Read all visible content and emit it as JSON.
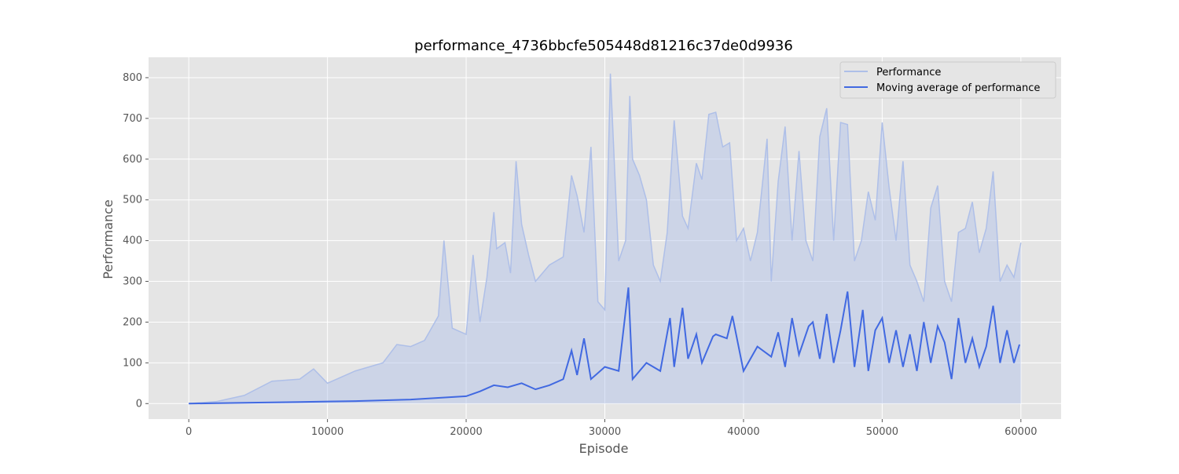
{
  "chart_data": {
    "type": "line",
    "title": "performance_4736bbcfe505448d81216c37de0d9936",
    "xlabel": "Episode",
    "ylabel": "Performance",
    "xlim": [
      -2900,
      62900
    ],
    "ylim": [
      -38,
      850
    ],
    "xticks": [
      0,
      10000,
      20000,
      30000,
      40000,
      50000,
      60000
    ],
    "yticks": [
      0,
      100,
      200,
      300,
      400,
      500,
      600,
      700,
      800
    ],
    "grid": true,
    "legend_position": "top-right",
    "colors": {
      "raw": "#aebfe8",
      "avg": "#4169e1",
      "plot_bg": "#e5e5e5",
      "grid": "#ffffff"
    },
    "series": [
      {
        "name": "Performance",
        "style": "light",
        "x": [
          0,
          2000,
          4000,
          6000,
          8000,
          9000,
          10000,
          12000,
          14000,
          15000,
          16000,
          17000,
          18000,
          18400,
          19000,
          20000,
          20500,
          21000,
          21500,
          22000,
          22200,
          22800,
          23200,
          23600,
          24000,
          24500,
          25000,
          26000,
          27000,
          27600,
          28000,
          28500,
          29000,
          29500,
          30000,
          30400,
          31000,
          31500,
          31800,
          32000,
          32500,
          33000,
          33500,
          34000,
          34500,
          35000,
          35600,
          36000,
          36600,
          37000,
          37500,
          38000,
          38500,
          39000,
          39500,
          40000,
          40500,
          41000,
          41700,
          42000,
          42500,
          43000,
          43500,
          44000,
          44500,
          45000,
          45500,
          46000,
          46500,
          47000,
          47500,
          48000,
          48500,
          49000,
          49500,
          50000,
          50500,
          51000,
          51500,
          52000,
          52500,
          53000,
          53500,
          54000,
          54500,
          55000,
          55500,
          56000,
          56500,
          57000,
          57500,
          58000,
          58500,
          59000,
          59500,
          60000
        ],
        "y": [
          0,
          5,
          20,
          55,
          60,
          85,
          50,
          80,
          100,
          145,
          140,
          155,
          215,
          400,
          185,
          170,
          365,
          200,
          310,
          470,
          380,
          395,
          320,
          595,
          440,
          365,
          300,
          340,
          360,
          560,
          510,
          420,
          630,
          250,
          230,
          810,
          350,
          400,
          755,
          600,
          560,
          500,
          340,
          300,
          420,
          695,
          460,
          430,
          590,
          550,
          710,
          715,
          630,
          640,
          400,
          430,
          350,
          420,
          650,
          300,
          545,
          680,
          400,
          620,
          400,
          350,
          655,
          725,
          400,
          690,
          685,
          350,
          400,
          520,
          450,
          690,
          530,
          400,
          595,
          340,
          300,
          250,
          480,
          535,
          300,
          250,
          420,
          430,
          495,
          370,
          430,
          570,
          300,
          340,
          310,
          395
        ]
      },
      {
        "name": "Moving average of performance",
        "style": "dark",
        "x": [
          0,
          2000,
          4000,
          6000,
          8000,
          10000,
          12000,
          14000,
          16000,
          18000,
          20000,
          21000,
          22000,
          23000,
          24000,
          25000,
          26000,
          27000,
          27600,
          28000,
          28500,
          29000,
          30000,
          31000,
          31700,
          32000,
          33000,
          34000,
          34700,
          35000,
          35600,
          36000,
          36600,
          37000,
          37800,
          38000,
          38800,
          39200,
          40000,
          41000,
          42000,
          42500,
          43000,
          43500,
          44000,
          44700,
          45000,
          45500,
          46000,
          46500,
          47000,
          47500,
          48000,
          48600,
          49000,
          49500,
          50000,
          50500,
          51000,
          51500,
          52000,
          52500,
          53000,
          53500,
          54000,
          54500,
          55000,
          55500,
          56000,
          56500,
          57000,
          57500,
          58000,
          58500,
          59000,
          59500,
          59900
        ],
        "y": [
          0,
          1,
          2,
          3,
          4,
          5,
          6,
          8,
          10,
          14,
          18,
          30,
          45,
          40,
          50,
          35,
          45,
          60,
          130,
          70,
          160,
          60,
          90,
          80,
          285,
          60,
          100,
          80,
          210,
          90,
          235,
          110,
          170,
          100,
          165,
          170,
          160,
          215,
          80,
          140,
          115,
          175,
          90,
          210,
          120,
          190,
          200,
          110,
          220,
          100,
          180,
          275,
          90,
          230,
          80,
          180,
          210,
          100,
          180,
          90,
          170,
          80,
          200,
          100,
          190,
          150,
          60,
          210,
          100,
          160,
          90,
          140,
          240,
          100,
          180,
          100,
          145
        ]
      }
    ]
  }
}
